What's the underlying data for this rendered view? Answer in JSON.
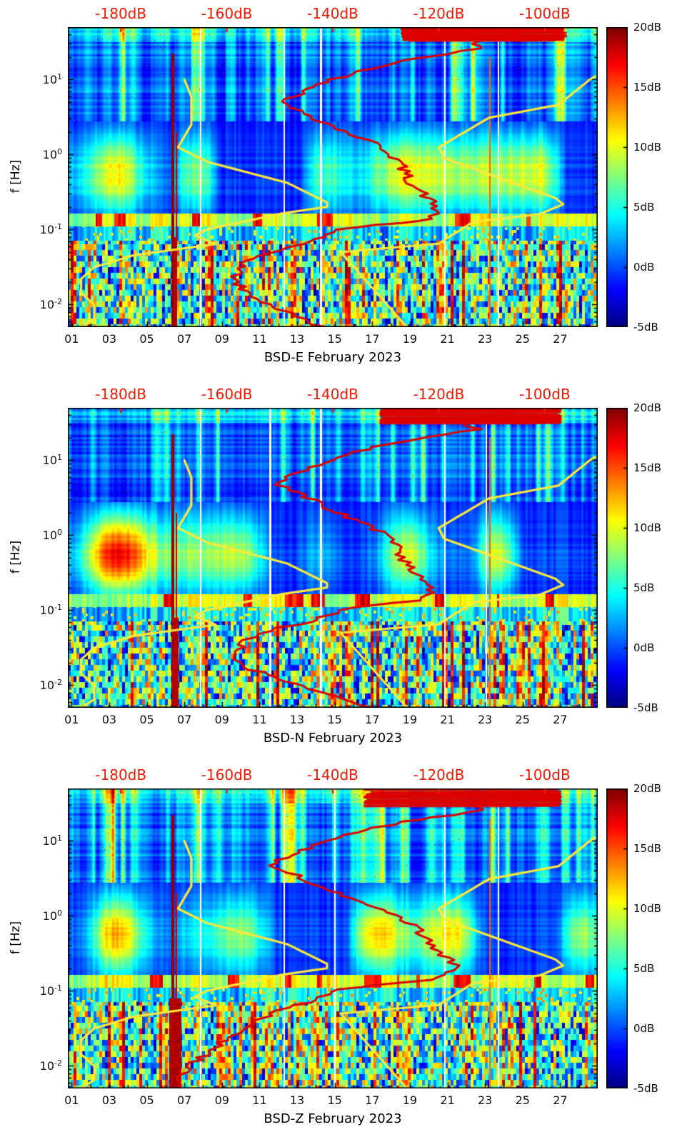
{
  "chart_data": {
    "type": "heatmap",
    "figure_kind": "seismic-noise-spectrogram-with-psd-curves",
    "colors": {
      "background": "#ffffff",
      "red_curve": "#dc0000",
      "yellow_curve": "#ffe838",
      "top_axis_label": "#f01800",
      "axis": "#000000"
    },
    "colorbar": {
      "min": -5,
      "max": 20,
      "ticks": [
        {
          "v": 20,
          "label": "20dB"
        },
        {
          "v": 15,
          "label": "15dB"
        },
        {
          "v": 10,
          "label": "10dB"
        },
        {
          "v": 5,
          "label": "5dB"
        },
        {
          "v": 0,
          "label": "0dB"
        },
        {
          "v": -5,
          "label": "-5dB"
        }
      ]
    },
    "top_axis": {
      "min": -190,
      "max": -90,
      "ticks": [
        {
          "v": -180,
          "label": "-180dB"
        },
        {
          "v": -160,
          "label": "-160dB"
        },
        {
          "v": -140,
          "label": "-140dB"
        },
        {
          "v": -120,
          "label": "-120dB"
        },
        {
          "v": -100,
          "label": "-100dB"
        }
      ]
    },
    "x_axis": {
      "day_min": 0.8,
      "day_max": 29,
      "ticks": [
        {
          "d": 1,
          "label": "01"
        },
        {
          "d": 3,
          "label": "03"
        },
        {
          "d": 5,
          "label": "05"
        },
        {
          "d": 7,
          "label": "07"
        },
        {
          "d": 9,
          "label": "09"
        },
        {
          "d": 11,
          "label": "11"
        },
        {
          "d": 13,
          "label": "13"
        },
        {
          "d": 15,
          "label": "15"
        },
        {
          "d": 17,
          "label": "17"
        },
        {
          "d": 19,
          "label": "19"
        },
        {
          "d": 21,
          "label": "21"
        },
        {
          "d": 23,
          "label": "23"
        },
        {
          "d": 25,
          "label": "25"
        },
        {
          "d": 27,
          "label": "27"
        }
      ]
    },
    "y_axis": {
      "label": "f [Hz]",
      "f_min": 0.005,
      "f_max": 50,
      "ticks": [
        {
          "f": 10,
          "base": "10",
          "exp": "1"
        },
        {
          "f": 1,
          "base": "10",
          "exp": "0"
        },
        {
          "f": 0.1,
          "base": "10",
          "exp": "-1"
        },
        {
          "f": 0.01,
          "base": "10",
          "exp": "-2"
        }
      ]
    },
    "noise_models": {
      "nlnm": [
        [
          10,
          -168
        ],
        [
          5.9,
          -166.7
        ],
        [
          2.5,
          -166.7
        ],
        [
          1.25,
          -169.2
        ],
        [
          0.8,
          -163.7
        ],
        [
          0.42,
          -148.6
        ],
        [
          0.23,
          -141.1
        ],
        [
          0.2,
          -141.1
        ],
        [
          0.165,
          -149.4
        ],
        [
          0.1,
          -163.8
        ],
        [
          0.083,
          -166
        ],
        [
          0.064,
          -162.1
        ],
        [
          0.0455,
          -177.5
        ],
        [
          0.0316,
          -185
        ],
        [
          0.022,
          -187.5
        ],
        [
          0.0143,
          -187.5
        ],
        [
          0.0099,
          -185
        ],
        [
          0.0065,
          -185
        ],
        [
          0.005,
          -187.5
        ]
      ],
      "nhnm": [
        [
          11,
          -90.5
        ],
        [
          10,
          -91.5
        ],
        [
          4.6,
          -97.4
        ],
        [
          3.1,
          -110.5
        ],
        [
          1.25,
          -120
        ],
        [
          0.9,
          -119
        ],
        [
          0.263,
          -98
        ],
        [
          0.217,
          -96.5
        ],
        [
          0.16,
          -101
        ],
        [
          0.127,
          -113.5
        ],
        [
          0.065,
          -120
        ],
        [
          0.05,
          -138.5
        ],
        [
          0.005,
          -126
        ]
      ]
    },
    "panels": [
      {
        "id": "BSD-E",
        "xlabel": "BSD-E February 2023",
        "seed": 11,
        "blob_w": 0.1,
        "top_band": {
          "f": [
            33,
            50
          ],
          "db": [
            -127,
            -96
          ]
        },
        "gaps": [
          7.85,
          12.3,
          14.25,
          20.85,
          23.7
        ],
        "red_curve": [
          [
            50,
            -100
          ],
          [
            45,
            -104
          ],
          [
            40,
            -107
          ],
          [
            35,
            -110
          ],
          [
            30,
            -114
          ],
          [
            26,
            -112
          ],
          [
            22,
            -119
          ],
          [
            18,
            -126
          ],
          [
            15,
            -131
          ],
          [
            12,
            -136
          ],
          [
            10,
            -140
          ],
          [
            8,
            -143
          ],
          [
            6.5,
            -146
          ],
          [
            5.5,
            -148
          ],
          [
            4.7,
            -149.5
          ],
          [
            4.2,
            -148
          ],
          [
            3.5,
            -145
          ],
          [
            2.8,
            -142
          ],
          [
            2.2,
            -139
          ],
          [
            1.7,
            -135
          ],
          [
            1.3,
            -131
          ],
          [
            1.0,
            -129
          ],
          [
            0.8,
            -127.5
          ],
          [
            0.6,
            -126.5
          ],
          [
            0.45,
            -125.5
          ],
          [
            0.35,
            -124
          ],
          [
            0.28,
            -122.5
          ],
          [
            0.22,
            -121
          ],
          [
            0.18,
            -120.5
          ],
          [
            0.15,
            -121
          ],
          [
            0.13,
            -124
          ],
          [
            0.115,
            -132
          ],
          [
            0.1,
            -139
          ],
          [
            0.085,
            -141
          ],
          [
            0.07,
            -144
          ],
          [
            0.058,
            -149
          ],
          [
            0.048,
            -153
          ],
          [
            0.038,
            -156
          ],
          [
            0.028,
            -158
          ],
          [
            0.02,
            -158.5
          ],
          [
            0.014,
            -156
          ],
          [
            0.01,
            -152
          ],
          [
            0.007,
            -147
          ],
          [
            0.005,
            -142
          ]
        ]
      },
      {
        "id": "BSD-N",
        "xlabel": "BSD-N February 2023",
        "seed": 22,
        "blob_w": 0.16,
        "top_band": {
          "f": [
            31,
            50
          ],
          "db": [
            -131,
            -97
          ]
        },
        "gaps": [
          7.85,
          11.55,
          14.25,
          20.85,
          23.05
        ],
        "red_curve": [
          [
            50,
            -101
          ],
          [
            45,
            -105
          ],
          [
            40,
            -109
          ],
          [
            34,
            -113
          ],
          [
            30,
            -116
          ],
          [
            26,
            -113
          ],
          [
            22,
            -120
          ],
          [
            18,
            -127
          ],
          [
            15,
            -132
          ],
          [
            12,
            -137
          ],
          [
            10,
            -141
          ],
          [
            8,
            -144
          ],
          [
            6.5,
            -147
          ],
          [
            5.5,
            -149
          ],
          [
            4.7,
            -150
          ],
          [
            4.0,
            -148
          ],
          [
            3.2,
            -145
          ],
          [
            2.5,
            -142
          ],
          [
            2.0,
            -139
          ],
          [
            1.5,
            -135
          ],
          [
            1.2,
            -132
          ],
          [
            0.95,
            -130
          ],
          [
            0.75,
            -128
          ],
          [
            0.55,
            -127
          ],
          [
            0.4,
            -126
          ],
          [
            0.3,
            -124
          ],
          [
            0.24,
            -122
          ],
          [
            0.2,
            -121
          ],
          [
            0.16,
            -121.5
          ],
          [
            0.135,
            -124
          ],
          [
            0.115,
            -133
          ],
          [
            0.1,
            -139
          ],
          [
            0.085,
            -141
          ],
          [
            0.07,
            -145
          ],
          [
            0.058,
            -150
          ],
          [
            0.048,
            -154
          ],
          [
            0.04,
            -156
          ],
          [
            0.03,
            -158
          ],
          [
            0.022,
            -158
          ],
          [
            0.016,
            -155
          ],
          [
            0.012,
            -150
          ],
          [
            0.009,
            -144
          ],
          [
            0.007,
            -139
          ],
          [
            0.005,
            -133
          ]
        ]
      },
      {
        "id": "BSD-Z",
        "xlabel": "BSD-Z February 2023",
        "seed": 33,
        "blob_w": 0.34,
        "top_band": {
          "f": [
            29,
            50
          ],
          "db": [
            -134,
            -97
          ]
        },
        "gaps": [
          7.85,
          12.3,
          15.0,
          20.85,
          23.7
        ],
        "red_curve": [
          [
            50,
            -100
          ],
          [
            45,
            -103
          ],
          [
            40,
            -106
          ],
          [
            35,
            -110
          ],
          [
            30,
            -114
          ],
          [
            26,
            -112
          ],
          [
            22,
            -118
          ],
          [
            18,
            -126
          ],
          [
            15,
            -132
          ],
          [
            12,
            -138
          ],
          [
            10,
            -142
          ],
          [
            8,
            -145
          ],
          [
            6.5,
            -148
          ],
          [
            5.5,
            -150
          ],
          [
            4.7,
            -151
          ],
          [
            4.0,
            -149
          ],
          [
            3.2,
            -146
          ],
          [
            2.5,
            -142
          ],
          [
            2.0,
            -139
          ],
          [
            1.5,
            -134
          ],
          [
            1.2,
            -130
          ],
          [
            0.95,
            -127
          ],
          [
            0.75,
            -125
          ],
          [
            0.55,
            -123
          ],
          [
            0.4,
            -121
          ],
          [
            0.3,
            -119
          ],
          [
            0.24,
            -117.5
          ],
          [
            0.2,
            -117
          ],
          [
            0.165,
            -118
          ],
          [
            0.14,
            -122
          ],
          [
            0.12,
            -132
          ],
          [
            0.105,
            -139
          ],
          [
            0.09,
            -141
          ],
          [
            0.075,
            -144
          ],
          [
            0.06,
            -148
          ],
          [
            0.05,
            -151
          ],
          [
            0.04,
            -154
          ],
          [
            0.03,
            -157
          ],
          [
            0.022,
            -160
          ],
          [
            0.016,
            -163
          ],
          [
            0.012,
            -165.5
          ],
          [
            0.009,
            -167.5
          ],
          [
            0.007,
            -169
          ],
          [
            0.005,
            -170
          ]
        ]
      }
    ]
  }
}
